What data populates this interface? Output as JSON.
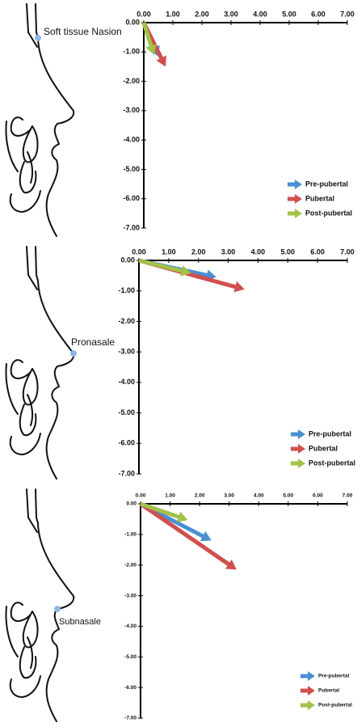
{
  "chart_data": [
    {
      "type": "vector",
      "annotation": "Soft tissue Nasion",
      "xlim": [
        0,
        7
      ],
      "ylim": [
        -7,
        0
      ],
      "xticks": [
        {
          "value": 0,
          "label": "0.00"
        },
        {
          "value": 1,
          "label": "1.00"
        },
        {
          "value": 2,
          "label": "2.00"
        },
        {
          "value": 3,
          "label": "3.00"
        },
        {
          "value": 4,
          "label": "4.00"
        },
        {
          "value": 5,
          "label": "5.00"
        },
        {
          "value": 6,
          "label": "6.00"
        },
        {
          "value": 7,
          "label": "7.00"
        }
      ],
      "yticks": [
        {
          "value": 0,
          "label": "0.00"
        },
        {
          "value": -1,
          "label": "-1.00"
        },
        {
          "value": -2,
          "label": "-2.00"
        },
        {
          "value": -3,
          "label": "-3.00"
        },
        {
          "value": -4,
          "label": "-4.00"
        },
        {
          "value": -5,
          "label": "-5.00"
        },
        {
          "value": -6,
          "label": "-6.00"
        },
        {
          "value": -7,
          "label": "-7.00"
        }
      ],
      "series": [
        {
          "name": "Pre-pubertal",
          "color": "#4b8fd1",
          "x": 0.5,
          "y": -1.15
        },
        {
          "name": "Pubertal",
          "color": "#d0504e",
          "x": 0.75,
          "y": -1.5
        },
        {
          "name": "Post-pubertal",
          "color": "#a2c24a",
          "x": 0.35,
          "y": -1.1
        }
      ]
    },
    {
      "type": "vector",
      "annotation": "Pronasale",
      "xlim": [
        0,
        7
      ],
      "ylim": [
        -7,
        0
      ],
      "xticks": [
        {
          "value": 0,
          "label": "0.00"
        },
        {
          "value": 1,
          "label": "1.00"
        },
        {
          "value": 2,
          "label": "2.00"
        },
        {
          "value": 3,
          "label": "3.00"
        },
        {
          "value": 4,
          "label": "4.00"
        },
        {
          "value": 5,
          "label": "5.00"
        },
        {
          "value": 6,
          "label": "6.00"
        },
        {
          "value": 7,
          "label": "7.00"
        }
      ],
      "yticks": [
        {
          "value": 0,
          "label": "0.00"
        },
        {
          "value": -1,
          "label": "-1.00"
        },
        {
          "value": -2,
          "label": "-2.00"
        },
        {
          "value": -3,
          "label": "-3.00"
        },
        {
          "value": -4,
          "label": "-4.00"
        },
        {
          "value": -5,
          "label": "-5.00"
        },
        {
          "value": -6,
          "label": "-6.00"
        },
        {
          "value": -7,
          "label": "-7.00"
        }
      ],
      "series": [
        {
          "name": "Pre-pubertal",
          "color": "#4b8fd1",
          "x": 2.6,
          "y": -0.55
        },
        {
          "name": "Pubertal",
          "color": "#d0504e",
          "x": 3.55,
          "y": -0.95
        },
        {
          "name": "Post-pubertal",
          "color": "#a2c24a",
          "x": 1.75,
          "y": -0.42
        }
      ]
    },
    {
      "type": "vector",
      "annotation": "Subnasale",
      "xlim": [
        0,
        7
      ],
      "ylim": [
        -7,
        0
      ],
      "xticks": [
        {
          "value": 0,
          "label": "0.00"
        },
        {
          "value": 1,
          "label": "1.00"
        },
        {
          "value": 2,
          "label": "2.00"
        },
        {
          "value": 3,
          "label": "3.00"
        },
        {
          "value": 4,
          "label": "4.00"
        },
        {
          "value": 5,
          "label": "5.00"
        },
        {
          "value": 6,
          "label": "6.00"
        },
        {
          "value": 7,
          "label": "7.00"
        }
      ],
      "yticks": [
        {
          "value": 0,
          "label": "0.00"
        },
        {
          "value": -1,
          "label": "-1.00"
        },
        {
          "value": -2,
          "label": "-2.00"
        },
        {
          "value": -3,
          "label": "-3.00"
        },
        {
          "value": -4,
          "label": "-4.00"
        },
        {
          "value": -5,
          "label": "-5.00"
        },
        {
          "value": -6,
          "label": "-6.00"
        },
        {
          "value": -7,
          "label": "-7.00"
        }
      ],
      "series": [
        {
          "name": "Pre-pubertal",
          "color": "#4b8fd1",
          "x": 2.4,
          "y": -1.2
        },
        {
          "name": "Pubertal",
          "color": "#d0504e",
          "x": 3.25,
          "y": -2.15
        },
        {
          "name": "Post-pubertal",
          "color": "#a2c24a",
          "x": 1.6,
          "y": -0.53
        }
      ]
    }
  ]
}
